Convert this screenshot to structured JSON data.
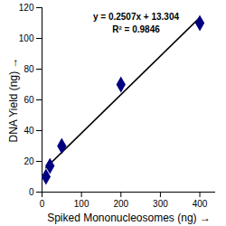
{
  "chart_data": {
    "type": "scatter",
    "x": [
      10,
      20,
      50,
      200,
      400
    ],
    "values": [
      10,
      17,
      30,
      70,
      110
    ],
    "color": "#000080",
    "marker": "diamond",
    "trendline": {
      "x": [
        10,
        400
      ],
      "values": [
        15.8,
        113.6
      ],
      "color": "#000000"
    },
    "annotations": [
      "y = 0.2507x + 13.304",
      "R² = 0.9846"
    ],
    "x_label": "Spiked Mononucleosomes (ng)",
    "y_label": "DNA Yield (ng)",
    "xlim": [
      0,
      440
    ],
    "xticks": [
      0,
      100,
      200,
      300,
      400
    ],
    "ylim": [
      0,
      120
    ],
    "yticks": [
      0,
      20,
      40,
      60,
      80,
      100,
      120
    ],
    "grid": false
  }
}
